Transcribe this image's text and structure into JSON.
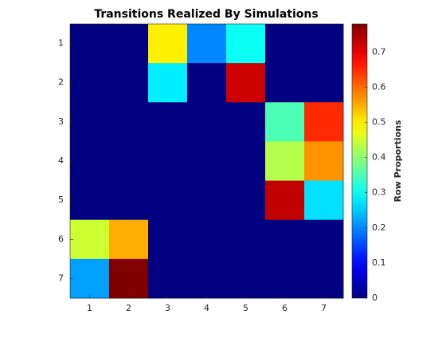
{
  "chart_data": {
    "type": "heatmap",
    "title": "Transitions Realized By Simulations",
    "x_categories": [
      "1",
      "2",
      "3",
      "4",
      "5",
      "6",
      "7"
    ],
    "y_categories": [
      "1",
      "2",
      "3",
      "4",
      "5",
      "6",
      "7"
    ],
    "values": [
      [
        0,
        0,
        0.5,
        0.2,
        0.3,
        0,
        0
      ],
      [
        0,
        0,
        0.28,
        0,
        0.72,
        0,
        0
      ],
      [
        0,
        0,
        0,
        0,
        0,
        0.35,
        0.65
      ],
      [
        0,
        0,
        0,
        0,
        0,
        0.43,
        0.57
      ],
      [
        0,
        0,
        0,
        0,
        0,
        0.73,
        0.27
      ],
      [
        0.45,
        0.55,
        0,
        0,
        0,
        0,
        0
      ],
      [
        0.22,
        0.78,
        0,
        0,
        0,
        0,
        0
      ]
    ],
    "colormap": "jet",
    "clim": [
      0,
      0.78
    ],
    "cticks": [
      0,
      0.1,
      0.2,
      0.3,
      0.4,
      0.5,
      0.6,
      0.7
    ],
    "colorbar_label": "Row Proportions"
  }
}
